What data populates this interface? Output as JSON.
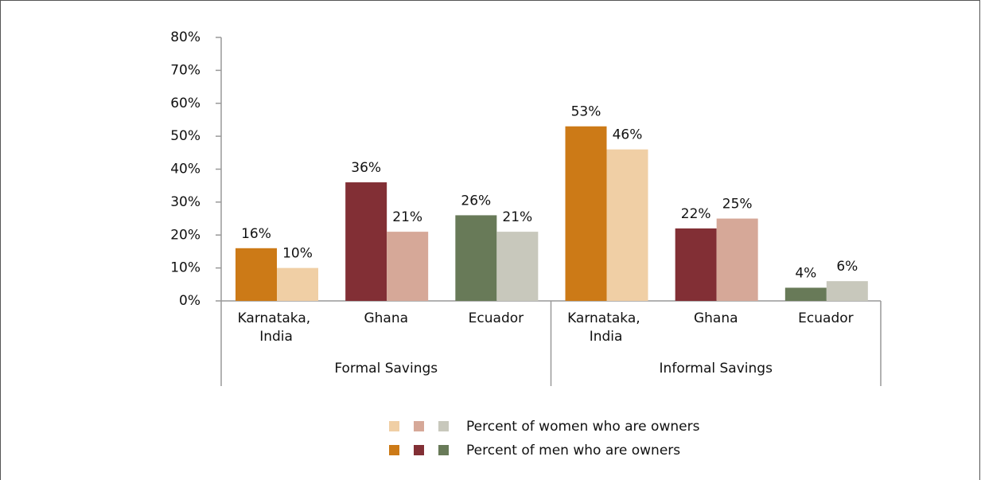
{
  "chart_data": {
    "type": "bar",
    "categories": [
      "Karnataka, India",
      "Ghana",
      "Ecuador",
      "Karnataka, India",
      "Ghana",
      "Ecuador"
    ],
    "groups": [
      {
        "name": "Formal Savings",
        "span": 3
      },
      {
        "name": "Informal Savings",
        "span": 3
      }
    ],
    "series": [
      {
        "name": "Percent of men who are owners",
        "colors": [
          "#cc7a17",
          "#822f35",
          "#687a58",
          "#cc7a17",
          "#822f35",
          "#687a58"
        ],
        "values": [
          16,
          36,
          26,
          53,
          22,
          4
        ],
        "value_labels": [
          "16%",
          "36%",
          "26%",
          "53%",
          "22%",
          "4%"
        ]
      },
      {
        "name": "Percent of women who are owners",
        "colors": [
          "#f0cfa5",
          "#d6a898",
          "#c8c8bc",
          "#f0cfa5",
          "#d6a898",
          "#c8c8bc"
        ],
        "values": [
          10,
          21,
          21,
          46,
          25,
          6
        ],
        "value_labels": [
          "10%",
          "21%",
          "21%",
          "46%",
          "25%",
          "6%"
        ]
      }
    ],
    "legend_order": [
      1,
      0
    ],
    "ylim": [
      0,
      80
    ],
    "yticks": [
      {
        "value": 0,
        "label": "0%"
      },
      {
        "value": 10,
        "label": "10%"
      },
      {
        "value": 20,
        "label": "20%"
      },
      {
        "value": 30,
        "label": "30%"
      },
      {
        "value": 40,
        "label": "40%"
      },
      {
        "value": 50,
        "label": "50%"
      },
      {
        "value": 60,
        "label": "60%"
      },
      {
        "value": 70,
        "label": "70%"
      },
      {
        "value": 80,
        "label": "80%"
      }
    ],
    "grid": false
  }
}
